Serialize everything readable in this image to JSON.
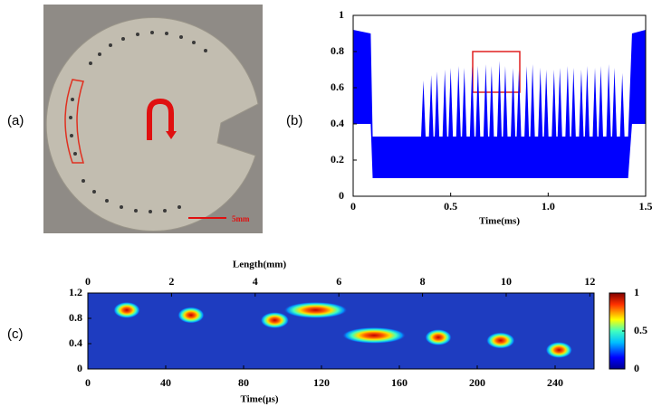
{
  "photo": {
    "label": "(a)",
    "scale_bar": "5mm"
  },
  "chart_data": [
    {
      "type": "signal",
      "label": "(b)",
      "xlabel": "Time(ms)",
      "color": "#0000ff",
      "xlim": [
        0,
        1.5
      ],
      "xticks": [
        0,
        0.5,
        {
          "value": 1,
          "label": "1.0"
        },
        1.5
      ],
      "ylim": [
        0,
        1
      ],
      "yticks": [
        0,
        0.2,
        0.4,
        0.6,
        0.8,
        1
      ],
      "envelope": {
        "x": [
          0,
          0.09,
          0.1,
          1.41,
          1.43,
          1.5
        ],
        "upper": [
          0.92,
          0.9,
          0.33,
          0.33,
          0.9,
          0.92
        ],
        "lower": [
          0.4,
          0.4,
          0.1,
          0.1,
          0.4,
          0.4
        ]
      },
      "peaks": {
        "x": [
          0.36,
          0.4,
          0.43,
          0.47,
          0.5,
          0.54,
          0.57,
          0.61,
          0.64,
          0.68,
          0.71,
          0.75,
          0.78,
          0.82,
          0.85,
          0.89,
          0.92,
          0.96,
          0.99,
          1.03,
          1.06,
          1.1,
          1.13,
          1.17,
          1.2,
          1.24,
          1.27,
          1.31,
          1.34,
          1.38
        ],
        "values": [
          0.64,
          0.67,
          0.69,
          0.7,
          0.71,
          0.72,
          0.71,
          0.72,
          0.72,
          0.73,
          0.72,
          0.75,
          0.72,
          0.71,
          0.7,
          0.72,
          0.73,
          0.71,
          0.7,
          0.7,
          0.71,
          0.72,
          0.71,
          0.7,
          0.72,
          0.71,
          0.72,
          0.73,
          0.71,
          0.68
        ]
      }
    },
    {
      "type": "heatmap",
      "label": "(c)",
      "xlabel": "Time(μs)",
      "x2label": "Length(mm)",
      "xlim": [
        0,
        260
      ],
      "xticks": [
        0,
        40,
        80,
        120,
        160,
        200,
        240
      ],
      "x2lim": [
        0,
        12.1
      ],
      "x2ticks": [
        0,
        2,
        4,
        6,
        8,
        10,
        12
      ],
      "ylim": [
        0,
        1.2
      ],
      "yticks": [
        0,
        0.4,
        0.8,
        1.2
      ],
      "colorbar": {
        "lim": [
          0,
          1
        ],
        "ticks": [
          0,
          0.5,
          1
        ]
      },
      "spots": {
        "x": [
          20,
          53,
          96,
          117,
          147,
          180,
          212,
          242
        ],
        "y": [
          0.93,
          0.85,
          0.77,
          0.93,
          0.53,
          0.5,
          0.45,
          0.3
        ],
        "widths": [
          9,
          9,
          10,
          28,
          28,
          9,
          10,
          9
        ]
      }
    }
  ]
}
